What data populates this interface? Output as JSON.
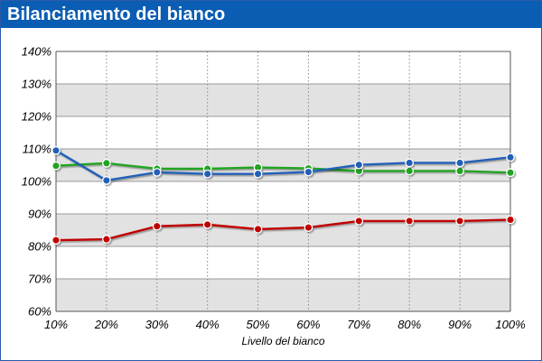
{
  "window": {
    "title": "Bilanciamento del bianco"
  },
  "colors": {
    "title_bar": "#0a5db3",
    "band": "#e2e2e2",
    "red": "#c00000",
    "green": "#22a322",
    "blue": "#2160b8"
  },
  "chart_data": {
    "type": "line",
    "title": "",
    "xlabel": "Livello del bianco",
    "ylabel": "",
    "categories": [
      "10%",
      "20%",
      "30%",
      "40%",
      "50%",
      "60%",
      "70%",
      "80%",
      "90%",
      "100%"
    ],
    "yticks": [
      "60%",
      "70%",
      "80%",
      "90%",
      "100%",
      "110%",
      "120%",
      "130%",
      "140%"
    ],
    "ylim": [
      60,
      140
    ],
    "grid": true,
    "legend": "none",
    "series": [
      {
        "color": "#c00000",
        "values": [
          81.9,
          82.2,
          86.2,
          86.7,
          85.3,
          85.8,
          87.8,
          87.8,
          87.8,
          88.2
        ]
      },
      {
        "color": "#22a322",
        "values": [
          104.8,
          105.6,
          103.9,
          103.9,
          104.3,
          104.0,
          103.2,
          103.2,
          103.2,
          102.7
        ]
      },
      {
        "color": "#2160b8",
        "values": [
          109.5,
          100.3,
          102.8,
          102.3,
          102.3,
          102.9,
          105.1,
          105.7,
          105.7,
          107.4
        ]
      }
    ]
  }
}
